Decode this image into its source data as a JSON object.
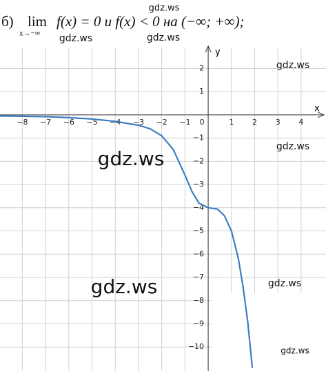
{
  "chart_data": {
    "type": "line",
    "label": "б)",
    "limit": "lim",
    "limit_sub": "x→−∞",
    "title": "f(x) = 0  и  f(x) < 0 на (−∞; +∞);",
    "x_label": "x",
    "y_label": "y",
    "x": [
      -9,
      -8,
      -7,
      -6,
      -5,
      -4,
      -3,
      -2.5,
      -2,
      -1.5,
      -1,
      -0.7,
      -0.4,
      0,
      0.4,
      0.7,
      1,
      1.3,
      1.5,
      1.7,
      1.9
    ],
    "values": [
      -0.05,
      -0.06,
      -0.08,
      -0.12,
      -0.18,
      -0.28,
      -0.45,
      -0.6,
      -0.9,
      -1.5,
      -2.6,
      -3.3,
      -3.8,
      -4,
      -4.06,
      -4.35,
      -5,
      -6.2,
      -7.4,
      -8.9,
      -10.9
    ],
    "color": "#3d7cc0",
    "xlim": [
      -8.96,
      5.07
    ],
    "ylim": [
      -11.03,
      2.87
    ],
    "xticks": [
      {
        "value": -8,
        "label": "−8"
      },
      {
        "value": -7,
        "label": "−7"
      },
      {
        "value": -6,
        "label": "−6"
      },
      {
        "value": -5,
        "label": "−5"
      },
      {
        "value": -4,
        "label": "−4"
      },
      {
        "value": -3,
        "label": "−3"
      },
      {
        "value": -2,
        "label": "−2"
      },
      {
        "value": -1,
        "label": "−1"
      },
      0,
      1,
      2,
      3,
      4
    ],
    "yticks": [
      2,
      1,
      {
        "value": -1,
        "label": "−1"
      },
      {
        "value": -2,
        "label": "−2"
      },
      {
        "value": -3,
        "label": "−3"
      },
      {
        "value": -4,
        "label": "−4"
      },
      {
        "value": -5,
        "label": "−5"
      },
      {
        "value": -6,
        "label": "−6"
      },
      {
        "value": -7,
        "label": "−7"
      },
      {
        "value": -8,
        "label": "−8"
      },
      {
        "value": -9,
        "label": "−9"
      },
      {
        "value": -10,
        "label": "−10"
      }
    ],
    "grid": true,
    "watermarks": [
      "gdz.ws",
      "gdz.ws",
      "gdz.ws",
      "gdz.ws",
      "gdz.ws",
      "gdz.ws",
      "gdz.ws",
      "gdz.ws",
      "gdz.ws"
    ]
  }
}
